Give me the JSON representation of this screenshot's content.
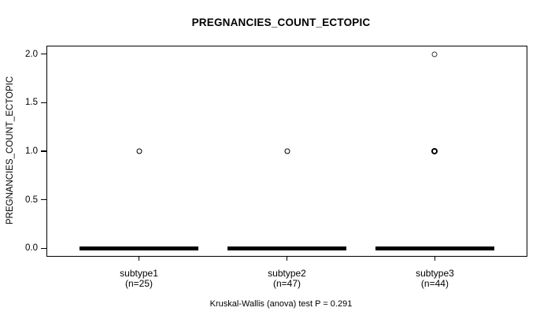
{
  "chart_data": {
    "type": "boxplot",
    "title": "PREGNANCIES_COUNT_ECTOPIC",
    "ylabel": "PREGNANCIES_COUNT_ECTOPIC",
    "xlabel": "",
    "caption": "Kruskal-Wallis (anova) test P = 0.291",
    "stat_test": {
      "name": "Kruskal-Wallis (anova)",
      "p_value": 0.291
    },
    "yticks": [
      0.0,
      0.5,
      1.0,
      1.5,
      2.0
    ],
    "ylim": [
      -0.08,
      2.08
    ],
    "xlim": [
      0.38,
      3.62
    ],
    "box_width": 0.8,
    "grid": false,
    "legend": null,
    "groups": [
      {
        "label": "subtype1",
        "n_label": "(n=25)",
        "n": 25,
        "position": 1,
        "median": 0,
        "q1": 0,
        "q3": 0,
        "whisker_low": 0,
        "whisker_high": 0,
        "outliers": [
          {
            "value": 1,
            "weight": "normal"
          }
        ]
      },
      {
        "label": "subtype2",
        "n_label": "(n=47)",
        "n": 47,
        "position": 2,
        "median": 0,
        "q1": 0,
        "q3": 0,
        "whisker_low": 0,
        "whisker_high": 0,
        "outliers": [
          {
            "value": 1,
            "weight": "normal"
          }
        ]
      },
      {
        "label": "subtype3",
        "n_label": "(n=44)",
        "n": 44,
        "position": 3,
        "median": 0,
        "q1": 0,
        "q3": 0,
        "whisker_low": 0,
        "whisker_high": 0,
        "outliers": [
          {
            "value": 1,
            "weight": "heavy"
          },
          {
            "value": 2,
            "weight": "light"
          }
        ]
      }
    ],
    "colors": {
      "box": "#000000",
      "frame": "#000000",
      "background": "#ffffff",
      "text": "#000000"
    }
  }
}
